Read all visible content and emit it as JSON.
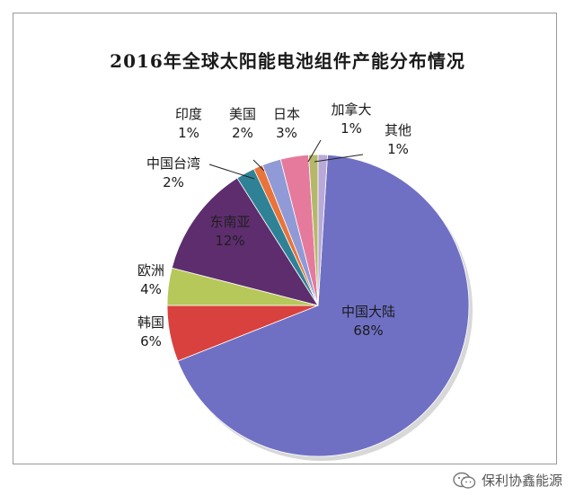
{
  "chart_data": {
    "type": "pie",
    "title": "2016年全球太阳能电池组件产能分布情况",
    "slices": [
      {
        "label": "中国大陆",
        "value": 68,
        "value_label": "68%",
        "color": "#6f70c4"
      },
      {
        "label": "韩国",
        "value": 6,
        "value_label": "6%",
        "color": "#d9413f"
      },
      {
        "label": "欧洲",
        "value": 4,
        "value_label": "4%",
        "color": "#b6c85a"
      },
      {
        "label": "东南亚",
        "value": 12,
        "value_label": "12%",
        "color": "#5e2d6e"
      },
      {
        "label": "中国台湾",
        "value": 2,
        "value_label": "2%",
        "color": "#2f8296"
      },
      {
        "label": "印度",
        "value": 1,
        "value_label": "1%",
        "color": "#e8743b"
      },
      {
        "label": "美国",
        "value": 2,
        "value_label": "2%",
        "color": "#8f9ad6"
      },
      {
        "label": "日本",
        "value": 3,
        "value_label": "3%",
        "color": "#e67a9c"
      },
      {
        "label": "加拿大",
        "value": 1,
        "value_label": "1%",
        "color": "#b5b86a"
      },
      {
        "label": "其他",
        "value": 1,
        "value_label": "1%",
        "color": "#b9a9d8"
      }
    ]
  },
  "watermark": {
    "text": "保利协鑫能源",
    "icon": "wechat-icon"
  }
}
